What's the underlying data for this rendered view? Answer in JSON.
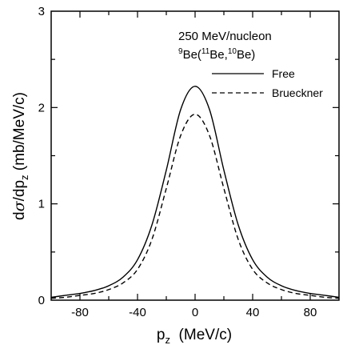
{
  "chart_data": {
    "type": "line",
    "x_range": [
      -100,
      100
    ],
    "y_range": [
      0,
      3
    ],
    "x_ticks": [
      "-80",
      "-40",
      "0",
      "40",
      "80"
    ],
    "x_tick_values": [
      -80,
      -40,
      0,
      40,
      80
    ],
    "y_ticks": [
      "0",
      "1",
      "2",
      "3"
    ],
    "y_tick_values": [
      0,
      1,
      2,
      3
    ],
    "xlabel": {
      "main": "p",
      "sub": "z",
      "rest": "  (MeV/c)"
    },
    "ylabel": {
      "d1": "d",
      "sigma": "σ",
      "slash": "/dp",
      "sub": "z",
      "rest": " (mb/MeV/c)"
    },
    "annotation_line1": "250 MeV/nucleon",
    "annotation_line2": {
      "sup1": "9",
      "a": "Be(",
      "sup2": "11",
      "b": "Be,",
      "sup3": "10",
      "c": "Be)"
    },
    "legend_position": "upper-right",
    "series": [
      {
        "name": "Free",
        "style": "solid",
        "x": [
          -100,
          -90,
          -80,
          -70,
          -60,
          -50,
          -40,
          -30,
          -20,
          -10,
          0,
          10,
          20,
          30,
          40,
          50,
          60,
          70,
          80,
          90,
          100
        ],
        "y": [
          0.03,
          0.05,
          0.07,
          0.1,
          0.15,
          0.24,
          0.42,
          0.78,
          1.35,
          1.98,
          2.22,
          1.98,
          1.35,
          0.78,
          0.42,
          0.24,
          0.15,
          0.1,
          0.07,
          0.05,
          0.03
        ]
      },
      {
        "name": "Brueckner",
        "style": "dashed",
        "x": [
          -100,
          -90,
          -80,
          -70,
          -60,
          -50,
          -40,
          -30,
          -20,
          -10,
          0,
          10,
          20,
          30,
          40,
          50,
          60,
          70,
          80,
          90,
          100
        ],
        "y": [
          0.02,
          0.03,
          0.05,
          0.07,
          0.11,
          0.18,
          0.32,
          0.63,
          1.16,
          1.71,
          1.93,
          1.71,
          1.16,
          0.63,
          0.32,
          0.18,
          0.11,
          0.07,
          0.05,
          0.03,
          0.02
        ]
      }
    ]
  }
}
